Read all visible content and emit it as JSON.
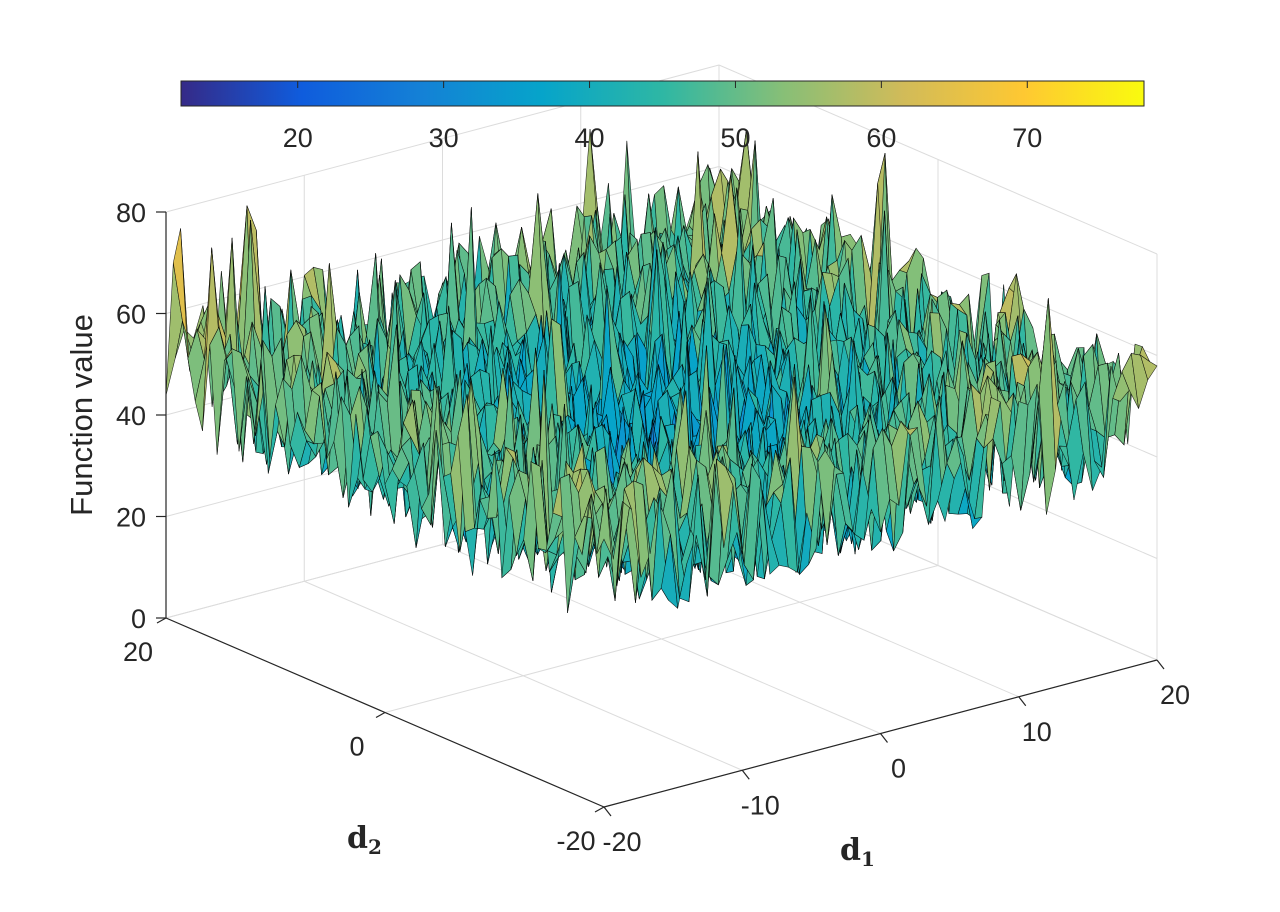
{
  "chart_data": {
    "type": "surface",
    "colormap": "parula",
    "colormap_stops": [
      "#352a87",
      "#0f5cdd",
      "#1481d6",
      "#06a4ca",
      "#2eb7a4",
      "#87bf77",
      "#d1bb59",
      "#fec832",
      "#f9fb0e"
    ],
    "surface_edge_color": "#000000",
    "zlabel": "Function value",
    "xlabel": "d",
    "xlabel_sub": "1",
    "ylabel": "d",
    "ylabel_sub": "2",
    "xlim": [
      -20,
      20
    ],
    "ylim": [
      -20,
      20
    ],
    "zlim": [
      0,
      80
    ],
    "xticks": [
      "-20",
      "-10",
      "0",
      "10",
      "20"
    ],
    "yticks": [
      "-20",
      "0",
      "20"
    ],
    "zticks": [
      "0",
      "20",
      "40",
      "60",
      "80"
    ],
    "colorbar": {
      "location": "top",
      "range": [
        12,
        78
      ],
      "ticks": [
        "20",
        "30",
        "40",
        "50",
        "60",
        "70"
      ]
    },
    "surface_description": {
      "shape": "noisy bowl",
      "center": [
        0,
        0
      ],
      "center_mean": 30,
      "edge_mean": 48,
      "noise_amplitude": 14,
      "max": 78,
      "min": 12
    },
    "grid": true
  }
}
